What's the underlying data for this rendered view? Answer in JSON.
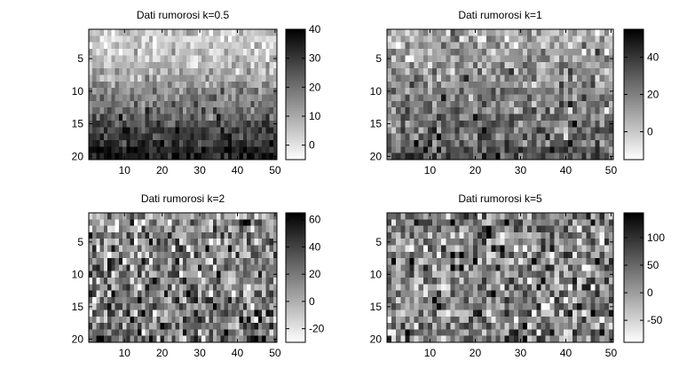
{
  "figure": {
    "background": "#ffffff",
    "colormap": "gray-reversed (white = low, black = high)"
  },
  "chart_data": [
    {
      "type": "heatmap",
      "title": "Dati rumorosi k=0.5",
      "xlabel": "",
      "ylabel": "",
      "xlim": [
        0.5,
        50.5
      ],
      "ylim": [
        20.5,
        0.5
      ],
      "rows": 20,
      "cols": 50,
      "x_ticks": [
        10,
        20,
        30,
        40,
        50
      ],
      "y_ticks": [
        5,
        10,
        15,
        20
      ],
      "colorbar": {
        "clim": [
          -5,
          40
        ],
        "ticks": [
          0,
          10,
          20,
          30,
          40
        ]
      },
      "pattern": "smooth vertical gradient, lightest near rows 2-5 and darkest at rows 17-20",
      "grid": false
    },
    {
      "type": "heatmap",
      "title": "Dati rumorosi k=1",
      "xlabel": "",
      "ylabel": "",
      "xlim": [
        0.5,
        50.5
      ],
      "ylim": [
        20.5,
        0.5
      ],
      "rows": 20,
      "cols": 50,
      "x_ticks": [
        10,
        20,
        30,
        40,
        50
      ],
      "y_ticks": [
        5,
        10,
        15,
        20
      ],
      "colorbar": {
        "clim": [
          -15,
          55
        ],
        "ticks": [
          0,
          20,
          40
        ]
      },
      "pattern": "vertical gradient with moderate noise, darker toward bottom rows",
      "grid": false
    },
    {
      "type": "heatmap",
      "title": "Dati rumorosi k=2",
      "xlabel": "",
      "ylabel": "",
      "xlim": [
        0.5,
        50.5
      ],
      "ylim": [
        20.5,
        0.5
      ],
      "rows": 20,
      "cols": 50,
      "x_ticks": [
        10,
        20,
        30,
        40,
        50
      ],
      "y_ticks": [
        5,
        10,
        15,
        20
      ],
      "colorbar": {
        "clim": [
          -30,
          65
        ],
        "ticks": [
          -20,
          0,
          20,
          40,
          60
        ]
      },
      "pattern": "strong noise, faint gradient",
      "grid": false
    },
    {
      "type": "heatmap",
      "title": "Dati rumorosi k=5",
      "xlabel": "",
      "ylabel": "",
      "xlim": [
        0.5,
        50.5
      ],
      "ylim": [
        20.5,
        0.5
      ],
      "rows": 20,
      "cols": 50,
      "x_ticks": [
        10,
        20,
        30,
        40,
        50
      ],
      "y_ticks": [
        5,
        10,
        15,
        20
      ],
      "colorbar": {
        "clim": [
          -90,
          145
        ],
        "ticks": [
          -50,
          0,
          50,
          100
        ]
      },
      "pattern": "noise dominated, no visible gradient",
      "grid": false
    }
  ]
}
